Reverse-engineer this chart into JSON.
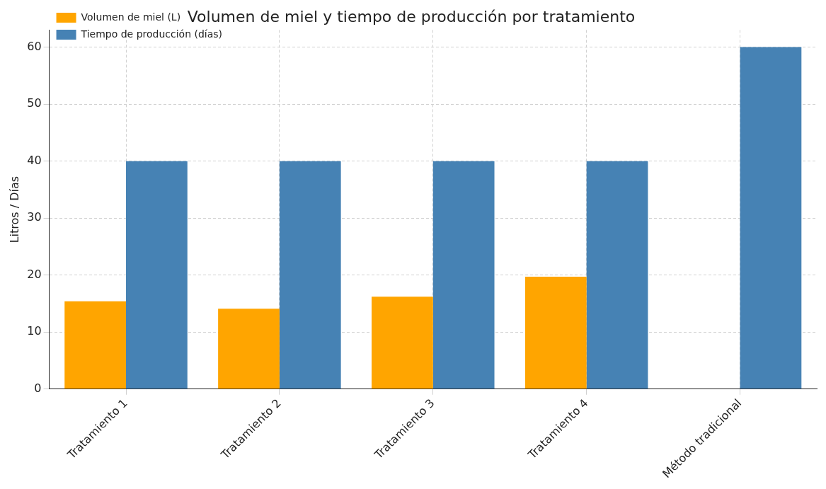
{
  "chart_data": {
    "type": "bar",
    "title": "Volumen de miel y tiempo de producción por tratamiento",
    "ylabel": "Litros / Días",
    "categories": [
      "Tratamiento 1",
      "Tratamiento 2",
      "Tratamiento 3",
      "Tratamiento 4",
      "Método tradicional"
    ],
    "series": [
      {
        "name": "Volumen de miel (L)",
        "color": "#ffa500",
        "values": [
          15.4,
          14.1,
          16.2,
          19.7,
          null
        ]
      },
      {
        "name": "Tiempo de producción (días)",
        "color": "#4682b4",
        "values": [
          40,
          40,
          40,
          40,
          60
        ]
      }
    ],
    "ylim": [
      0,
      63
    ],
    "yticks": [
      0,
      10,
      20,
      30,
      40,
      50,
      60
    ],
    "grid": true,
    "legend": "top left"
  }
}
